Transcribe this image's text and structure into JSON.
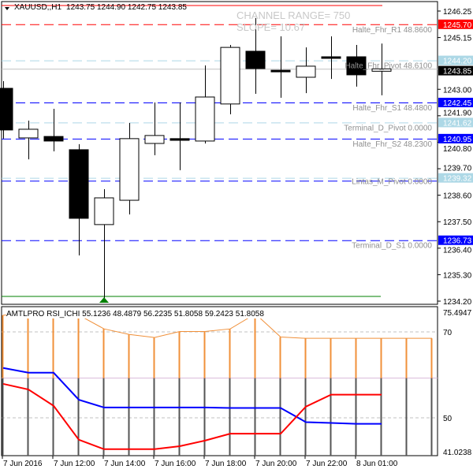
{
  "header": {
    "symbol": "XAUUSD,,H1",
    "ohlc": "1243.75 1244.90 1242.75 1243.85",
    "menu_icon": "triangle-down-icon"
  },
  "channel": {
    "range_text": "CHANNEL RANGE= 750",
    "slope_text": "SLOPE= 10.67"
  },
  "colors": {
    "bull_body": "#ffffff",
    "bear_body": "#000000",
    "resistance": "#ff0000",
    "support": "#0000ff",
    "pivot": "#add8e6",
    "bid": "#c0c0c0",
    "rsi_upper": "#f0903a",
    "rsi_lower": "#555555",
    "blue_line": "#0000ff",
    "red_line": "#ff0000",
    "arrow": "#008000"
  },
  "price_axis": {
    "min": 1234.2,
    "max": 1246.25,
    "ticks": [
      "1246.25",
      "1245.15",
      "1243.00",
      "1241.90",
      "1240.80",
      "1239.70",
      "1238.60",
      "1237.50",
      "1236.40",
      "1235.30",
      "1234.20"
    ]
  },
  "candles": [
    {
      "o": 1243.04,
      "h": 1243.34,
      "l": 1240.95,
      "c": 1241.31
    },
    {
      "o": 1240.98,
      "h": 1241.7,
      "l": 1240.09,
      "c": 1241.34
    },
    {
      "o": 1241.04,
      "h": 1242.19,
      "l": 1240.42,
      "c": 1240.85
    },
    {
      "o": 1240.49,
      "h": 1240.72,
      "l": 1236.1,
      "c": 1237.64
    },
    {
      "o": 1237.38,
      "h": 1238.85,
      "l": 1234.33,
      "c": 1238.49
    },
    {
      "o": 1238.39,
      "h": 1241.6,
      "l": 1237.8,
      "c": 1240.95
    },
    {
      "o": 1240.75,
      "h": 1242.45,
      "l": 1240.26,
      "c": 1241.08
    },
    {
      "o": 1240.95,
      "h": 1242.45,
      "l": 1239.64,
      "c": 1240.88
    },
    {
      "o": 1240.85,
      "h": 1243.99,
      "l": 1240.75,
      "c": 1242.68
    },
    {
      "o": 1242.39,
      "h": 1244.84,
      "l": 1241.96,
      "c": 1244.74
    },
    {
      "o": 1244.58,
      "h": 1245.96,
      "l": 1242.81,
      "c": 1243.86
    },
    {
      "o": 1243.79,
      "h": 1245.2,
      "l": 1242.65,
      "c": 1243.73
    },
    {
      "o": 1243.5,
      "h": 1244.74,
      "l": 1242.84,
      "c": 1243.96
    },
    {
      "o": 1244.35,
      "h": 1245.2,
      "l": 1243.43,
      "c": 1244.29
    },
    {
      "o": 1244.35,
      "h": 1244.84,
      "l": 1243.11,
      "c": 1243.6
    },
    {
      "o": 1243.75,
      "h": 1244.9,
      "l": 1242.75,
      "c": 1243.85
    }
  ],
  "levels": [
    {
      "price": 1245.7,
      "kind": "resistance",
      "tag": "1245.70",
      "label": "Halte_Fhr_R1 48.8600"
    },
    {
      "price": 1244.2,
      "kind": "pivot",
      "tag": "1244.20",
      "label": "Halte_Fhr_Pivot 48.6100"
    },
    {
      "price": 1242.45,
      "kind": "support",
      "tag": "1242.45",
      "label": "Halte_Fhr_S1 48.4800"
    },
    {
      "price": 1241.62,
      "kind": "pivot",
      "tag": "1241.62",
      "label": "Terminal_D_Pivot 0.0000"
    },
    {
      "price": 1240.95,
      "kind": "support",
      "tag": "1240.95",
      "label": "Halte_Fhr_S2 48.2300"
    },
    {
      "price": 1239.32,
      "kind": "pivot",
      "tag": "1239.32",
      "label": ""
    },
    {
      "price": 1239.2,
      "kind": "support",
      "tag": "",
      "label": "Lintas_M_Pivot 0.0000"
    },
    {
      "price": 1236.73,
      "kind": "support",
      "tag": "1236.73",
      "label": "Terminal_D_S1 0.0000"
    }
  ],
  "bid": {
    "price": 1243.85,
    "tag": "1243.85"
  },
  "top_line_price": 1246.45,
  "low_line_price": 1234.33,
  "indicator": {
    "title": "AMTLPRO RSI_ICHI 55.1236 48.4879 56.2235 51.8058 59.2423 51.8058",
    "max": 75.4947,
    "min": 41.0238,
    "max_label": "75.4947",
    "min_label": "41.0238",
    "levels": [
      {
        "value": 70,
        "label": "70"
      },
      {
        "value": 50,
        "label": "50"
      }
    ],
    "midline": 59.2423,
    "orange": [
      73.9,
      73.9,
      73.9,
      73.9,
      70.7,
      69.4,
      68.7,
      70.1,
      70.1,
      70.7,
      74.2,
      68.8,
      68.5,
      68.5,
      68.5,
      68.5,
      68.5,
      68.5
    ],
    "blue": [
      61.6,
      60.5,
      60.5,
      54.2,
      52.4,
      52.4,
      52.4,
      52.4,
      52.4,
      52.3,
      52.3,
      52.3,
      49.0,
      48.8,
      48.6,
      48.6
    ],
    "red": [
      57.9,
      56.6,
      52.8,
      44.9,
      42.7,
      42.7,
      42.7,
      43.4,
      44.7,
      46.3,
      46.3,
      46.3,
      52.6,
      55.4,
      55.4,
      55.4
    ]
  },
  "time_axis": [
    "7 Jun 2016",
    "7 Jun 12:00",
    "7 Jun 14:00",
    "7 Jun 16:00",
    "7 Jun 18:00",
    "7 Jun 20:00",
    "7 Jun 22:00",
    "8 Jun 01:00"
  ]
}
